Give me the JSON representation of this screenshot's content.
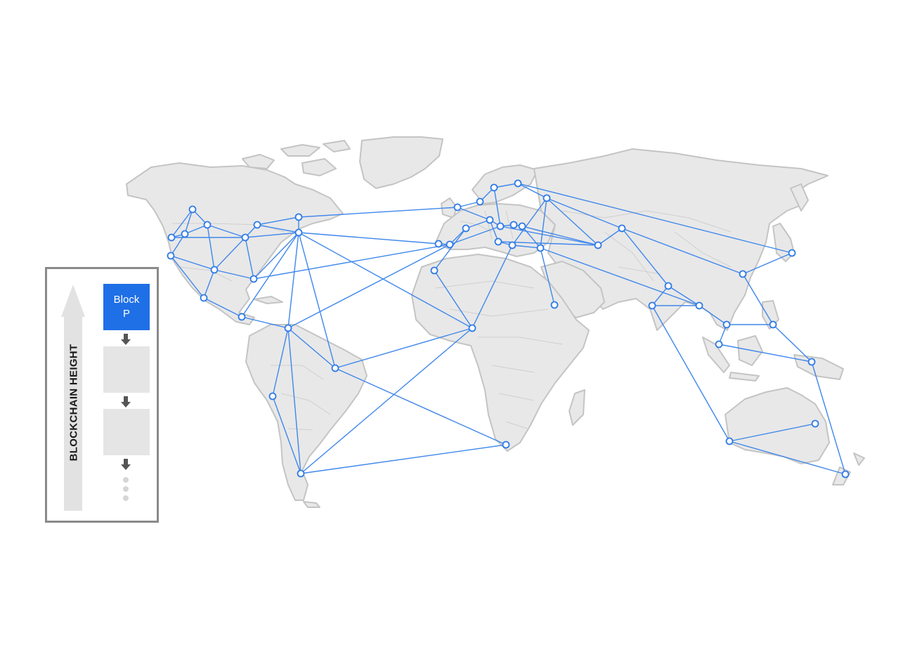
{
  "legend": {
    "axis_label": "BLOCKCHAIN HEIGHT",
    "current_block": {
      "line1": "Block",
      "line2": "P"
    },
    "empty_blocks": 2,
    "colors": {
      "block": "#1f6fe6",
      "empty_block": "#e5e5e5",
      "arrow": "#e2e2e2",
      "chevron": "#555555"
    }
  },
  "network": {
    "colors": {
      "edge": "#3f87ec",
      "node_stroke": "#2f7be6",
      "land": "#e8e8e8"
    }
  }
}
